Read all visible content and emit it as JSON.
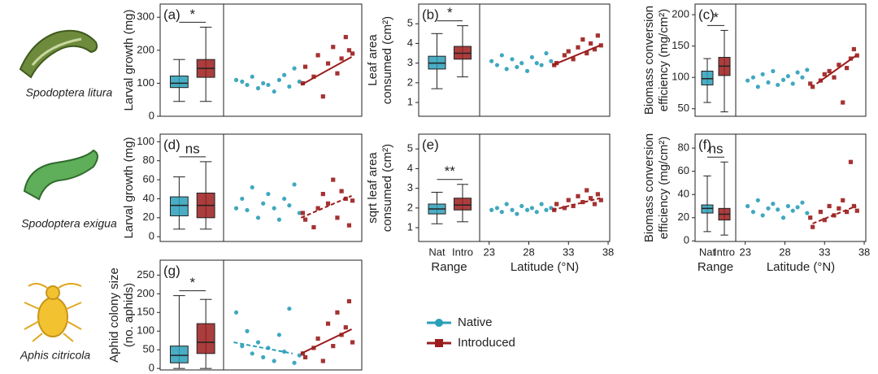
{
  "species": [
    "Spodoptera litura",
    "Spodoptera exigua",
    "Aphis citricola"
  ],
  "chart_data": [
    {
      "type": "boxscatter",
      "panel": "(a)",
      "significance": "*",
      "ylabel": [
        "Larval growth (mg)"
      ],
      "ylim": [
        0,
        340
      ],
      "yticks": [
        0,
        100,
        200,
        300
      ],
      "xlim": [
        21.8,
        38.2
      ],
      "series": [
        {
          "name": "Native",
          "color": "#2a9fb8",
          "box": {
            "whisker_low": 45,
            "q1": 87,
            "median": 100,
            "q3": 122,
            "whisker_high": 172
          },
          "x": [
            23.3,
            24,
            24.6,
            25.2,
            25.9,
            26.5,
            27.1,
            27.8,
            28.4,
            29,
            29.6,
            30.2,
            30.8
          ],
          "values": [
            110,
            105,
            95,
            120,
            85,
            100,
            95,
            75,
            110,
            125,
            90,
            145,
            105
          ]
        },
        {
          "name": "Introduced",
          "color": "#9b1c1c",
          "box": {
            "whisker_low": 45,
            "q1": 118,
            "median": 145,
            "q3": 172,
            "whisker_high": 270
          },
          "x": [
            31.2,
            31.5,
            32.5,
            33,
            33.6,
            34.2,
            34.8,
            35.3,
            35.8,
            36.3,
            36.7,
            37.1
          ],
          "values": [
            100,
            150,
            120,
            185,
            60,
            160,
            210,
            130,
            175,
            240,
            200,
            190
          ],
          "trend": {
            "x": [
              31,
              37
            ],
            "values": [
              95,
              180
            ],
            "style": "solid"
          }
        }
      ]
    },
    {
      "type": "boxscatter",
      "panel": "(b)",
      "significance": "*",
      "ylabel": [
        "Leaf area",
        "consumed (cm²)"
      ],
      "ylim": [
        0.3,
        6
      ],
      "yticks": [
        1,
        2,
        3,
        4,
        5
      ],
      "xlim": [
        21.8,
        38.2
      ],
      "series": [
        {
          "name": "Native",
          "color": "#2a9fb8",
          "box": {
            "whisker_low": 1.7,
            "q1": 2.7,
            "median": 3.0,
            "q3": 3.35,
            "whisker_high": 4.5
          },
          "x": [
            23.3,
            24,
            24.6,
            25.2,
            25.9,
            26.5,
            27.1,
            27.8,
            28.4,
            29,
            29.6,
            30.2,
            30.8
          ],
          "values": [
            3.1,
            2.9,
            3.4,
            2.7,
            3.2,
            2.8,
            3.0,
            2.6,
            3.3,
            3.0,
            2.9,
            3.5,
            3.1
          ]
        },
        {
          "name": "Introduced",
          "color": "#9b1c1c",
          "box": {
            "whisker_low": 2.3,
            "q1": 3.2,
            "median": 3.5,
            "q3": 3.85,
            "whisker_high": 4.9
          },
          "x": [
            31.2,
            31.5,
            32.5,
            33,
            33.6,
            34.2,
            34.8,
            35.3,
            35.8,
            36.3,
            36.7,
            37.1
          ],
          "values": [
            2.9,
            3.0,
            3.4,
            3.6,
            3.2,
            3.8,
            4.2,
            3.5,
            4.0,
            3.7,
            4.4,
            3.9
          ],
          "trend": {
            "x": [
              31,
              37
            ],
            "values": [
              2.9,
              3.9
            ],
            "style": "solid"
          }
        }
      ]
    },
    {
      "type": "boxscatter",
      "panel": "(c)",
      "significance": "*",
      "ylabel": [
        "Biomass conversion",
        "efficiency (mg/cm²)"
      ],
      "ylim": [
        38,
        217
      ],
      "yticks": [
        50,
        100,
        150,
        200
      ],
      "xlim": [
        21.8,
        38.2
      ],
      "series": [
        {
          "name": "Native",
          "color": "#2a9fb8",
          "box": {
            "whisker_low": 60,
            "q1": 88,
            "median": 98,
            "q3": 110,
            "whisker_high": 130
          },
          "x": [
            23.3,
            24,
            24.6,
            25.2,
            25.9,
            26.5,
            27.1,
            27.8,
            28.4,
            29,
            29.6,
            30.2,
            30.8
          ],
          "values": [
            95,
            100,
            85,
            105,
            92,
            110,
            88,
            96,
            102,
            90,
            108,
            100,
            112
          ]
        },
        {
          "name": "Introduced",
          "color": "#9b1c1c",
          "box": {
            "whisker_low": 45,
            "q1": 103,
            "median": 118,
            "q3": 132,
            "whisker_high": 175
          },
          "x": [
            31.2,
            31.5,
            32.5,
            33,
            33.6,
            34.2,
            34.8,
            35.3,
            35.8,
            36.3,
            36.7,
            37.1
          ],
          "values": [
            90,
            85,
            95,
            105,
            110,
            100,
            120,
            60,
            115,
            130,
            145,
            135
          ],
          "trend": {
            "x": [
              32,
              37
            ],
            "values": [
              90,
              135
            ],
            "style": "solid"
          }
        }
      ]
    },
    {
      "type": "boxscatter",
      "panel": "(d)",
      "significance": "ns",
      "ylabel": [
        "Larval growth (mg)"
      ],
      "ylim": [
        -5,
        108
      ],
      "yticks": [
        0,
        20,
        40,
        60,
        80,
        100
      ],
      "xlim": [
        21.8,
        38.2
      ],
      "series": [
        {
          "name": "Native",
          "color": "#2a9fb8",
          "box": {
            "whisker_low": 8,
            "q1": 22,
            "median": 33,
            "q3": 42,
            "whisker_high": 63
          },
          "x": [
            23.3,
            24,
            24.6,
            25.2,
            25.9,
            26.5,
            27.1,
            27.8,
            28.4,
            29,
            29.6,
            30.2,
            30.8
          ],
          "values": [
            30,
            40,
            28,
            52,
            20,
            35,
            45,
            30,
            18,
            40,
            33,
            55,
            25
          ]
        },
        {
          "name": "Introduced",
          "color": "#9b1c1c",
          "box": {
            "whisker_low": 8,
            "q1": 20,
            "median": 33,
            "q3": 46,
            "whisker_high": 79
          },
          "x": [
            31.2,
            31.5,
            32.5,
            33,
            33.6,
            34.2,
            34.8,
            35.3,
            35.8,
            36.3,
            36.7,
            37.1
          ],
          "values": [
            25,
            18,
            10,
            30,
            45,
            35,
            60,
            20,
            48,
            40,
            12,
            38
          ],
          "trend": {
            "x": [
              31,
              37
            ],
            "values": [
              20,
              43
            ],
            "style": "dashed"
          }
        }
      ]
    },
    {
      "type": "boxscatter",
      "panel": "(e)",
      "significance": "**",
      "ylabel": [
        "sqrt leaf area",
        "consumed (cm²)"
      ],
      "ylim": [
        0.3,
        5.75
      ],
      "yticks": [
        1,
        2,
        3,
        4,
        5
      ],
      "xlim": [
        21.8,
        38.2
      ],
      "xticks": [
        23,
        28,
        33,
        38
      ],
      "categories": [
        "Nat",
        "Intro"
      ],
      "xlabel_range": "Range",
      "xlabel": "Latitude (°N)",
      "series": [
        {
          "name": "Native",
          "color": "#2a9fb8",
          "box": {
            "whisker_low": 1.2,
            "q1": 1.7,
            "median": 1.95,
            "q3": 2.2,
            "whisker_high": 2.8
          },
          "x": [
            23.3,
            24,
            24.6,
            25.2,
            25.9,
            26.5,
            27.1,
            27.8,
            28.4,
            29,
            29.6,
            30.2,
            30.8
          ],
          "values": [
            1.9,
            2.0,
            1.8,
            2.2,
            1.9,
            1.7,
            2.1,
            1.9,
            2.0,
            1.8,
            2.2,
            1.9,
            2.0
          ]
        },
        {
          "name": "Introduced",
          "color": "#9b1c1c",
          "box": {
            "whisker_low": 1.3,
            "q1": 1.9,
            "median": 2.15,
            "q3": 2.5,
            "whisker_high": 3.2
          },
          "x": [
            31.2,
            31.5,
            32.5,
            33,
            33.6,
            34.2,
            34.8,
            35.3,
            35.8,
            36.3,
            36.7,
            37.1
          ],
          "values": [
            1.9,
            2.2,
            2.0,
            2.4,
            2.1,
            2.6,
            2.3,
            2.9,
            2.5,
            2.2,
            2.7,
            2.4
          ],
          "trend": {
            "x": [
              31,
              37
            ],
            "values": [
              1.9,
              2.5
            ],
            "style": "dashed"
          }
        }
      ]
    },
    {
      "type": "boxscatter",
      "panel": "(f)",
      "significance": "ns",
      "ylabel": [
        "Biomass conversion",
        "efficiency (mg/cm²)"
      ],
      "ylim": [
        -0.5,
        92
      ],
      "yticks": [
        0,
        20,
        40,
        60,
        80
      ],
      "xlim": [
        21.8,
        38.2
      ],
      "xticks": [
        23,
        28,
        33,
        38
      ],
      "categories": [
        "Nat",
        "Intro"
      ],
      "xlabel_range": "Range",
      "xlabel": "Latitude (°N)",
      "series": [
        {
          "name": "Native",
          "color": "#2a9fb8",
          "box": {
            "whisker_low": 8,
            "q1": 24,
            "median": 28,
            "q3": 31,
            "whisker_high": 56
          },
          "x": [
            23.3,
            24,
            24.6,
            25.2,
            25.9,
            26.5,
            27.1,
            27.8,
            28.4,
            29,
            29.6,
            30.2,
            30.8
          ],
          "values": [
            30,
            25,
            35,
            22,
            28,
            32,
            27,
            20,
            30,
            26,
            29,
            33,
            24
          ]
        },
        {
          "name": "Introduced",
          "color": "#9b1c1c",
          "box": {
            "whisker_low": 5,
            "q1": 18,
            "median": 23,
            "q3": 28,
            "whisker_high": 68
          },
          "x": [
            31.2,
            31.5,
            32.5,
            33,
            33.6,
            34.2,
            34.8,
            35.3,
            35.8,
            36.3,
            36.7,
            37.1
          ],
          "values": [
            20,
            12,
            25,
            18,
            30,
            22,
            28,
            35,
            25,
            68,
            30,
            26
          ],
          "trend": {
            "x": [
              31.5,
              37
            ],
            "values": [
              15,
              30
            ],
            "style": "dashed"
          }
        }
      ]
    },
    {
      "type": "boxscatter",
      "panel": "(g)",
      "significance": "*",
      "ylabel": [
        "Aphid colony size",
        "(no. aphids)"
      ],
      "ylim": [
        -4,
        290
      ],
      "yticks": [
        0,
        50,
        100,
        150,
        200,
        250
      ],
      "xlim": [
        21.8,
        38.2
      ],
      "series": [
        {
          "name": "Native",
          "color": "#2a9fb8",
          "box": {
            "whisker_low": 0,
            "q1": 15,
            "median": 35,
            "q3": 60,
            "whisker_high": 195
          },
          "x": [
            23.3,
            24,
            24.6,
            25.2,
            25.9,
            26.5,
            27.1,
            27.8,
            28.4,
            29,
            29.6,
            30.2,
            30.8
          ],
          "values": [
            150,
            60,
            100,
            40,
            70,
            30,
            55,
            20,
            90,
            45,
            160,
            15,
            35
          ],
          "trend": {
            "x": [
              23,
              30
            ],
            "values": [
              70,
              40
            ],
            "style": "dashed"
          }
        },
        {
          "name": "Introduced",
          "color": "#9b1c1c",
          "box": {
            "whisker_low": 0,
            "q1": 40,
            "median": 70,
            "q3": 120,
            "whisker_high": 185
          },
          "x": [
            31.2,
            31.5,
            32.5,
            33,
            33.6,
            34.2,
            34.8,
            35.3,
            35.8,
            36.3,
            36.7,
            37.1
          ],
          "values": [
            40,
            30,
            55,
            80,
            20,
            120,
            60,
            150,
            90,
            110,
            180,
            70
          ],
          "trend": {
            "x": [
              31,
              37
            ],
            "values": [
              40,
              105
            ],
            "style": "solid"
          }
        }
      ]
    }
  ]
}
